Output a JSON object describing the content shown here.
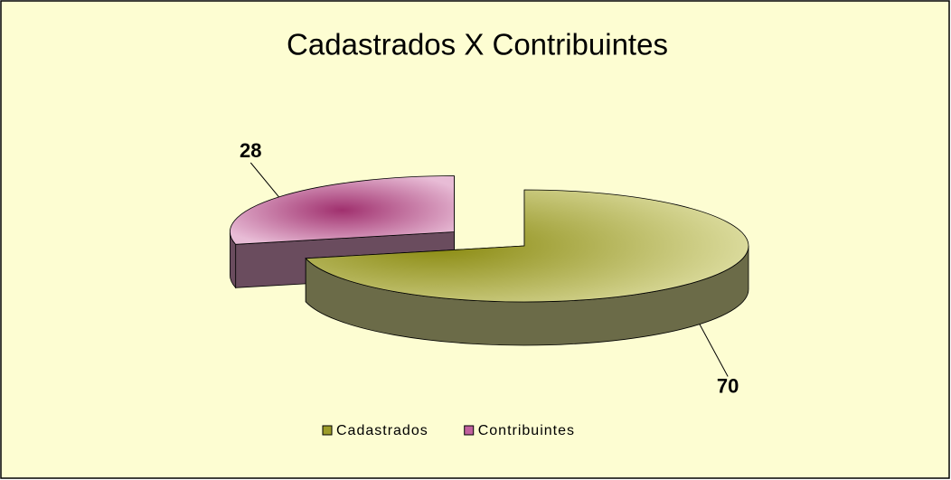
{
  "chart_data": {
    "type": "pie",
    "title": "Cadastrados X Contribuintes",
    "categories": [
      "Cadastrados",
      "Contribuintes"
    ],
    "values": [
      70,
      28
    ],
    "colors": [
      "#9c9c2a",
      "#c0609e"
    ],
    "explode": [
      0,
      0.4
    ],
    "legend": "bottom"
  }
}
